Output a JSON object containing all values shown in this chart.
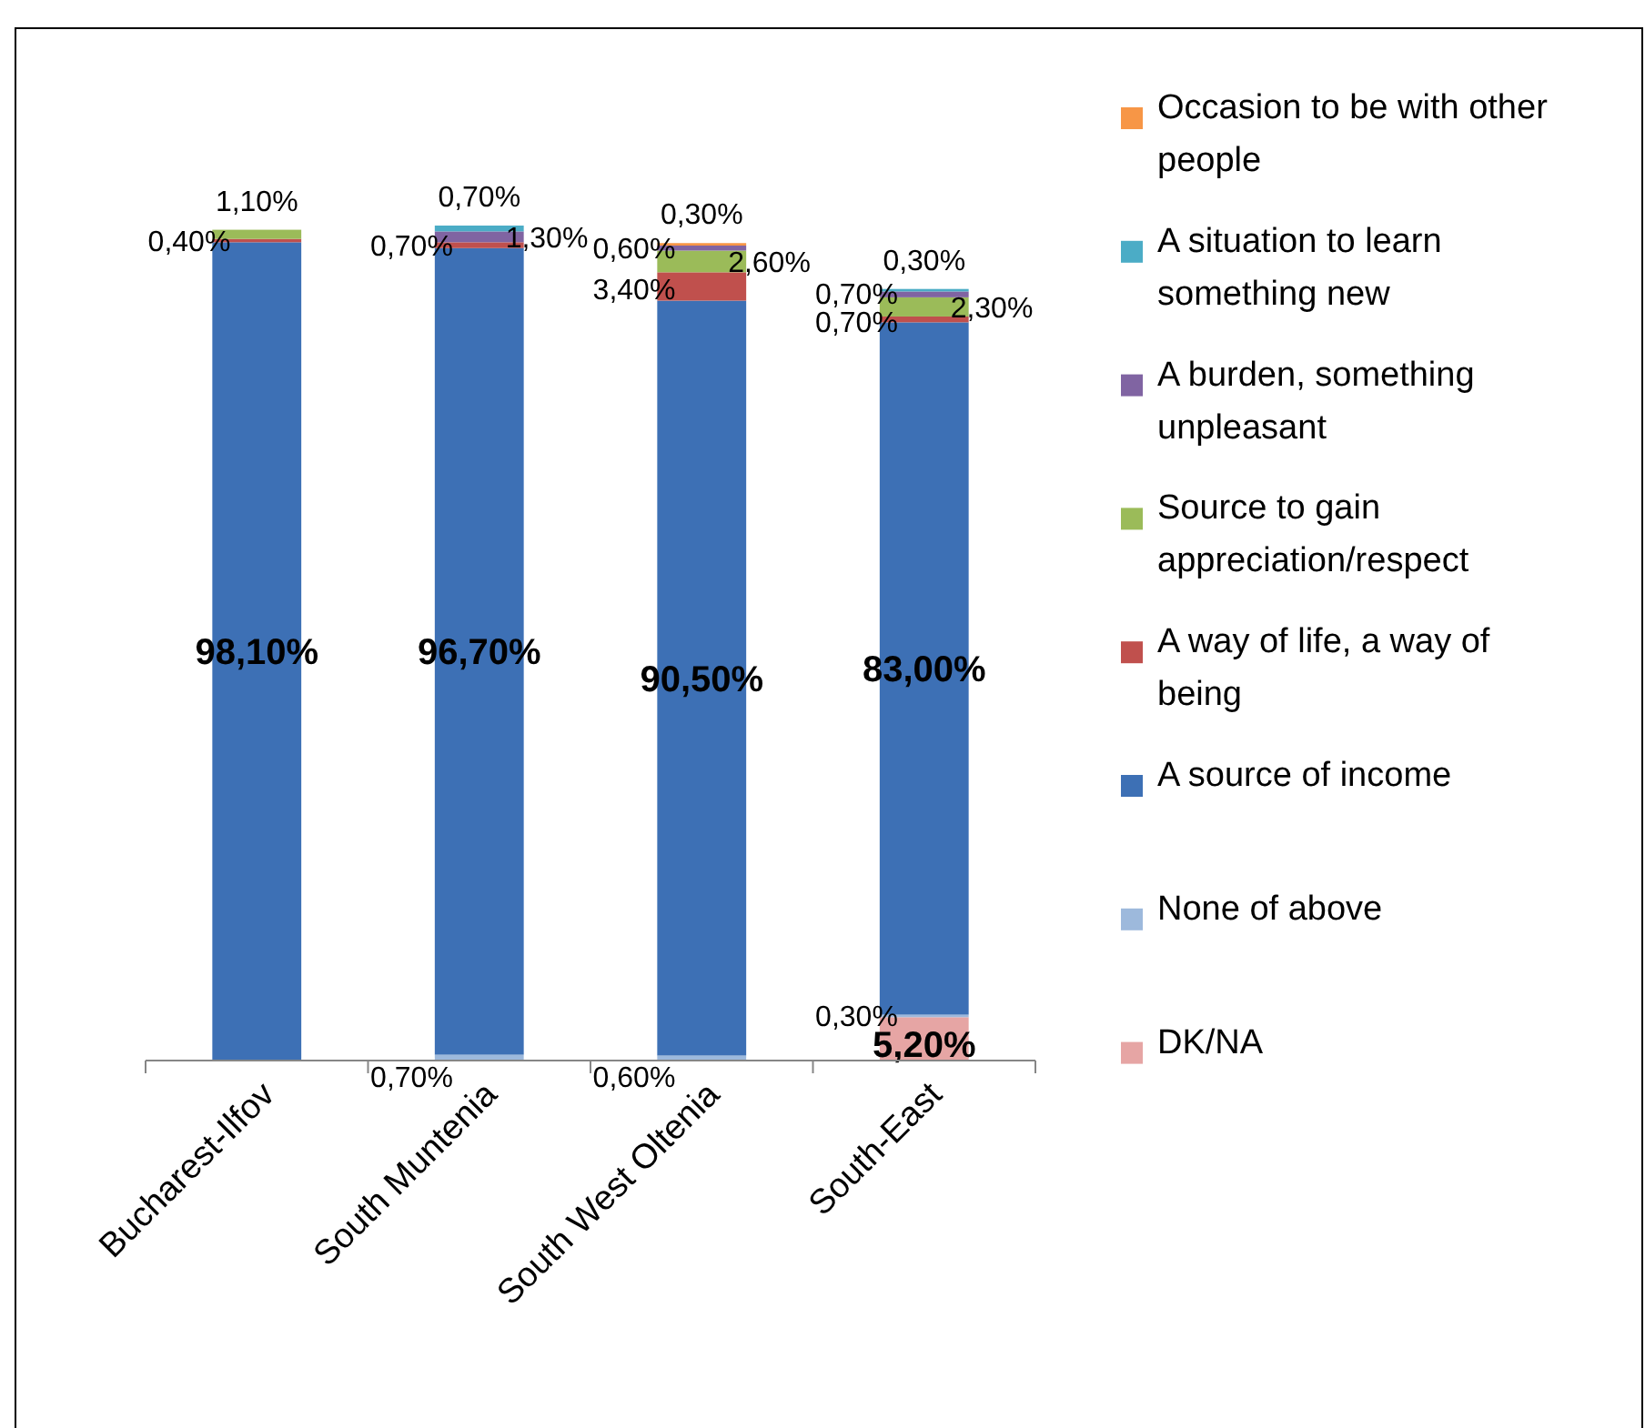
{
  "chart_data": {
    "type": "bar",
    "stacked": true,
    "categories": [
      "Bucharest-Ilfov",
      "South Muntenia",
      "South West Oltenia",
      "South-East"
    ],
    "series": [
      {
        "name": "DK/NA",
        "color": "#e6a5a4",
        "values": [
          null,
          null,
          null,
          5.2
        ],
        "value_labels": [
          null,
          null,
          null,
          "5,20%"
        ]
      },
      {
        "name": "None of above",
        "color": "#9db9dc",
        "values": [
          null,
          0.7,
          0.6,
          0.3
        ],
        "value_labels": [
          null,
          "0,70%",
          "0,60%",
          "0,30%"
        ]
      },
      {
        "name": "A source of income",
        "color": "#3d70b5",
        "values": [
          98.1,
          96.7,
          90.5,
          83.0
        ],
        "value_labels": [
          "98,10%",
          "96,70%",
          "90,50%",
          "83,00%"
        ]
      },
      {
        "name": "A way of life, a way of being",
        "color": "#c0504d",
        "values": [
          0.4,
          0.7,
          3.4,
          0.7
        ],
        "value_labels": [
          "0,40%",
          "0,70%",
          "3,40%",
          "0,70%"
        ]
      },
      {
        "name": "Source to gain appreciation/respect",
        "color": "#9bbb59",
        "values": [
          1.1,
          null,
          2.6,
          2.3
        ],
        "value_labels": [
          "1,10%",
          null,
          "2,60%",
          "2,30%"
        ]
      },
      {
        "name": "A burden, something unpleasant",
        "color": "#8064a2",
        "values": [
          null,
          1.3,
          0.6,
          0.7
        ],
        "value_labels": [
          null,
          "1,30%",
          "0,60%",
          "0,70%"
        ]
      },
      {
        "name": "A situation to learn something new",
        "color": "#4bacc6",
        "values": [
          null,
          0.7,
          null,
          0.3
        ],
        "value_labels": [
          null,
          "0,70%",
          null,
          "0,30%"
        ]
      },
      {
        "name": "Occasion to be with other people",
        "color": "#f79646",
        "values": [
          null,
          null,
          0.3,
          null
        ],
        "value_labels": [
          null,
          null,
          "0,30%",
          null
        ]
      }
    ],
    "tick_labels": "x",
    "legend": "right"
  }
}
